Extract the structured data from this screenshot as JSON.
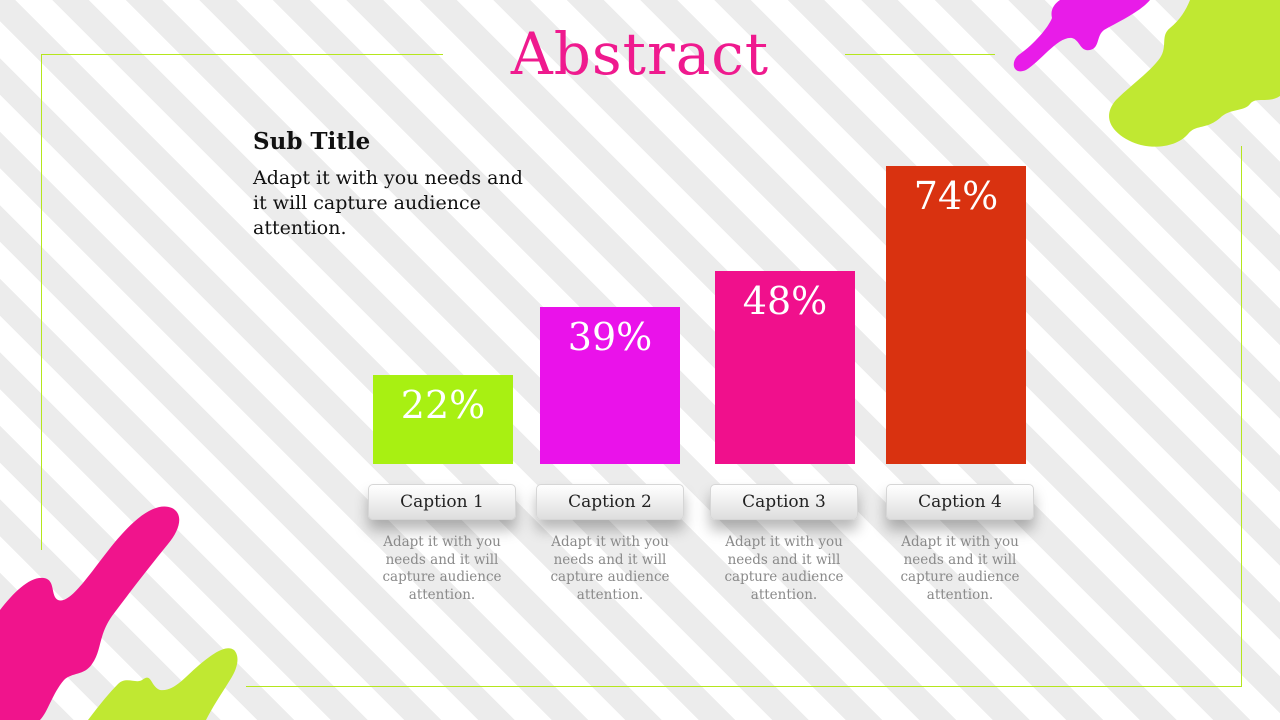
{
  "slide": {
    "title": "Abstract",
    "subtitle": "Sub Title",
    "description": "Adapt it with you needs and it will capture audience attention."
  },
  "colors": {
    "frame": "#b5e61d",
    "title": "#ef1a8e",
    "splash_pink": "#f0148c",
    "splash_magenta": "#e81ce8",
    "splash_green": "#c0e832"
  },
  "chart_data": {
    "type": "bar",
    "categories": [
      "Caption 1",
      "Caption 2",
      "Caption 3",
      "Caption 4"
    ],
    "values": [
      22,
      39,
      48,
      74
    ],
    "labels": [
      "22%",
      "39%",
      "48%",
      "74%"
    ],
    "colors": [
      "#a8f012",
      "#ea12ea",
      "#f0108c",
      "#d93210"
    ],
    "descriptions": [
      "Adapt it with you needs and it will capture audience attention.",
      "Adapt it with you needs and it will capture audience attention.",
      "Adapt it with you needs and it will capture audience attention.",
      "Adapt it with you needs and it will capture audience attention."
    ],
    "ylim": [
      0,
      100
    ],
    "title": "",
    "xlabel": "",
    "ylabel": "",
    "grid": false
  }
}
